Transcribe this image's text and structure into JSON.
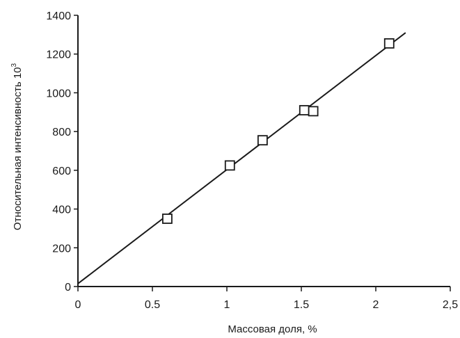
{
  "chart_data": {
    "type": "scatter",
    "title": "",
    "xlabel": "Массовая доля, %",
    "ylabel": "Относительная интенсивность 10",
    "ylabel_superscript": "3",
    "xlim": [
      0,
      2.5
    ],
    "ylim": [
      0,
      1400
    ],
    "x_ticks": [
      0,
      0.5,
      1,
      1.5,
      2,
      2.5
    ],
    "x_tick_labels": [
      "0",
      "0.5",
      "1",
      "1.5",
      "2",
      "2,5"
    ],
    "y_ticks": [
      0,
      200,
      400,
      600,
      800,
      1000,
      1200,
      1400
    ],
    "y_tick_labels": [
      "0",
      "200",
      "400",
      "600",
      "800",
      "1000",
      "1200",
      "1400"
    ],
    "grid": false,
    "legend": false,
    "marker": "open-square",
    "color": "#1a1a1a",
    "points": [
      {
        "x": 0.6,
        "y": 350
      },
      {
        "x": 1.02,
        "y": 625
      },
      {
        "x": 1.24,
        "y": 755
      },
      {
        "x": 1.52,
        "y": 910
      },
      {
        "x": 1.58,
        "y": 905
      },
      {
        "x": 2.09,
        "y": 1255
      }
    ],
    "trendline": {
      "type": "linear",
      "x": [
        0,
        2.2
      ],
      "y": [
        15,
        1310
      ]
    }
  }
}
